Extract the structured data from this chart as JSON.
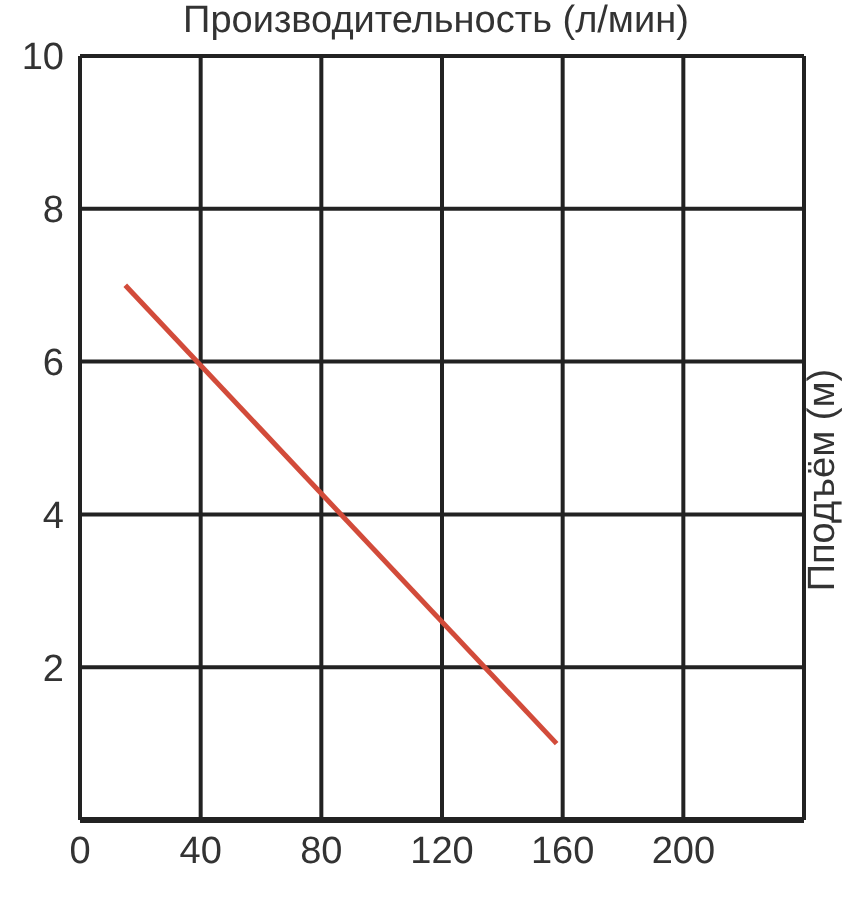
{
  "chart_data": {
    "type": "line",
    "xlabel": "Производительность (л/мин)",
    "ylabel": "Пподъём (м)",
    "x": [
      15,
      158
    ],
    "series": [
      {
        "color": "#d24b3a",
        "values": [
          7,
          1
        ]
      }
    ],
    "xlim": [
      0,
      240
    ],
    "xticks": [
      0,
      40,
      80,
      120,
      160,
      200,
      {
        "value": 240,
        "label": null
      }
    ],
    "ylim": [
      0,
      10
    ],
    "yticks": [
      2,
      4,
      6,
      8,
      10
    ],
    "grid": true,
    "marker": "none",
    "line_style": "solid"
  }
}
